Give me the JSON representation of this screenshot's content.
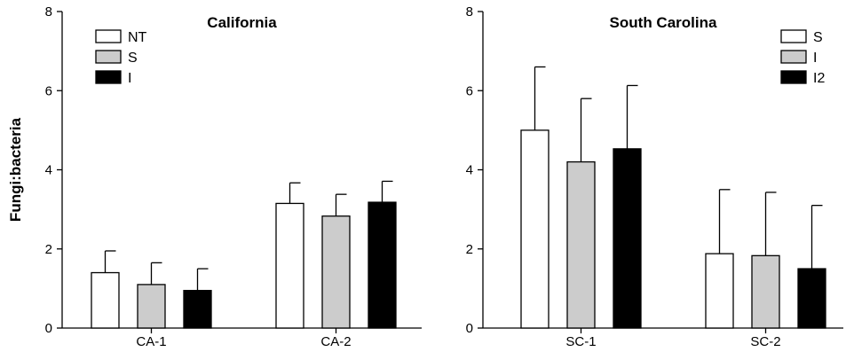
{
  "chart_data": [
    {
      "type": "bar",
      "title": "California",
      "ylabel": "Fungi:bacteria",
      "xlabel": "",
      "ylim": [
        0,
        8
      ],
      "yticks": [
        0,
        2,
        4,
        6,
        8
      ],
      "categories": [
        "CA-1",
        "CA-2"
      ],
      "legend_position": "top-left",
      "series": [
        {
          "name": "NT",
          "color": "#ffffff",
          "values": [
            1.4,
            3.15
          ],
          "errors": [
            0.55,
            0.52
          ]
        },
        {
          "name": "S",
          "color": "#cccccc",
          "values": [
            1.1,
            2.83
          ],
          "errors": [
            0.55,
            0.55
          ]
        },
        {
          "name": "I",
          "color": "#000000",
          "values": [
            0.95,
            3.18
          ],
          "errors": [
            0.55,
            0.53
          ]
        }
      ]
    },
    {
      "type": "bar",
      "title": "South Carolina",
      "ylabel": "",
      "xlabel": "",
      "ylim": [
        0,
        8
      ],
      "yticks": [
        0,
        2,
        4,
        6,
        8
      ],
      "categories": [
        "SC-1",
        "SC-2"
      ],
      "legend_position": "top-right",
      "series": [
        {
          "name": "S",
          "color": "#ffffff",
          "values": [
            5.0,
            1.88
          ],
          "errors": [
            1.6,
            1.62
          ]
        },
        {
          "name": "I",
          "color": "#cccccc",
          "values": [
            4.2,
            1.83
          ],
          "errors": [
            1.6,
            1.6
          ]
        },
        {
          "name": "I2",
          "color": "#000000",
          "values": [
            4.53,
            1.5
          ],
          "errors": [
            1.6,
            1.6
          ]
        }
      ]
    }
  ]
}
